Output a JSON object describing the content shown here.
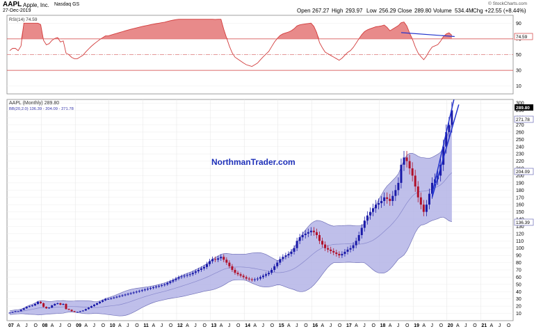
{
  "header": {
    "symbol": "AAPL",
    "company": "Apple, Inc.",
    "exchange": "Nasdaq GS",
    "date": "27-Dec-2019",
    "open_label": "Open",
    "open": "267.27",
    "high_label": "High",
    "high": "293.97",
    "low_label": "Low",
    "low": "256.29",
    "close_label": "Close",
    "close": "289.80",
    "volume_label": "Volume",
    "volume": "534.4M",
    "chg_label": "Chg",
    "chg": "+22.55 (+8.44%)",
    "copyright": "© StockCharts.com"
  },
  "rsi_panel": {
    "label": "RSI(14) 74.59",
    "current_tag": "74.59",
    "y_ticks": [
      "90",
      "70",
      "50",
      "30",
      "10"
    ],
    "levels": [
      70,
      30
    ],
    "mid_level": 50
  },
  "price_panel": {
    "label": "AAPL (Monthly) 289.80",
    "bb_label": "BB(20,2.0) 136.39 - 204.09 - 271.78",
    "watermark": "NorthmanTrader.com",
    "price_tag": "289.80",
    "upper_tag": "271.78",
    "mid_tag": "204.09",
    "lower_tag": "136.39",
    "y_ticks": [
      "300",
      "290",
      "280",
      "270",
      "260",
      "250",
      "240",
      "230",
      "220",
      "210",
      "200",
      "190",
      "180",
      "170",
      "160",
      "150",
      "140",
      "130",
      "120",
      "110",
      "100",
      "90",
      "80",
      "70",
      "60",
      "50",
      "40",
      "30",
      "20",
      "10"
    ]
  },
  "x_axis": {
    "labels": [
      "07",
      "A",
      "J",
      "O",
      "08",
      "A",
      "J",
      "O",
      "09",
      "A",
      "J",
      "O",
      "10",
      "A",
      "J",
      "O",
      "11",
      "A",
      "J",
      "O",
      "12",
      "A",
      "J",
      "O",
      "13",
      "A",
      "J",
      "O",
      "14",
      "A",
      "J",
      "O",
      "15",
      "A",
      "J",
      "O",
      "16",
      "A",
      "J",
      "O",
      "17",
      "A",
      "J",
      "O",
      "18",
      "A",
      "J",
      "O",
      "19",
      "A",
      "J",
      "O",
      "20",
      "A",
      "J",
      "O",
      "21",
      "A",
      "J",
      "O"
    ]
  },
  "colors": {
    "up": "#1a1aa8",
    "down": "#b0102a",
    "band_fill": "#b4b4e6",
    "band_line": "#7070b8",
    "rsi_line": "#d23c3c",
    "rsi_fill": "#e88a8a",
    "trendline": "#2233cc",
    "watermark": "#1d2fb8"
  },
  "chart_data": {
    "type": "candlestick",
    "series_name": "AAPL (Monthly)",
    "x_start": "Jan 2007",
    "interval": "monthly",
    "ohlc_approx_close": [
      11,
      12,
      13,
      13,
      15,
      17,
      19,
      20,
      21,
      23,
      26,
      24,
      19,
      17,
      18,
      21,
      23,
      24,
      22,
      23,
      16,
      15,
      13,
      12,
      12,
      13,
      14,
      16,
      18,
      20,
      22,
      24,
      26,
      28,
      30,
      30,
      31,
      32,
      33,
      34,
      35,
      36,
      37,
      38,
      39,
      40,
      41,
      42,
      43,
      44,
      45,
      46,
      47,
      48,
      49,
      50,
      52,
      54,
      56,
      58,
      60,
      61,
      62,
      63,
      64,
      66,
      68,
      70,
      72,
      74,
      78,
      82,
      85,
      84,
      86,
      88,
      84,
      80,
      75,
      70,
      66,
      64,
      62,
      60,
      58,
      57,
      56,
      57,
      58,
      60,
      62,
      64,
      66,
      70,
      75,
      80,
      85,
      88,
      90,
      92,
      95,
      100,
      110,
      115,
      118,
      120,
      122,
      124,
      122,
      118,
      110,
      105,
      100,
      98,
      96,
      94,
      92,
      90,
      92,
      95,
      98,
      100,
      104,
      110,
      118,
      128,
      138,
      145,
      150,
      155,
      160,
      162,
      165,
      170,
      168,
      165,
      172,
      180,
      190,
      215,
      225,
      220,
      210,
      200,
      185,
      170,
      160,
      150,
      160,
      175,
      190,
      195,
      200,
      215,
      240,
      260,
      270,
      290
    ],
    "bollinger": {
      "period": 20,
      "stddev": 2.0,
      "lower": 136.39,
      "middle": 204.09,
      "upper": 271.78
    },
    "rsi": {
      "period": 14,
      "last": 74.59
    },
    "ylim": [
      0,
      305
    ],
    "rsi_ylim": [
      0,
      100
    ],
    "trendline_note": "rising wedge on price, declining line on RSI highs"
  }
}
